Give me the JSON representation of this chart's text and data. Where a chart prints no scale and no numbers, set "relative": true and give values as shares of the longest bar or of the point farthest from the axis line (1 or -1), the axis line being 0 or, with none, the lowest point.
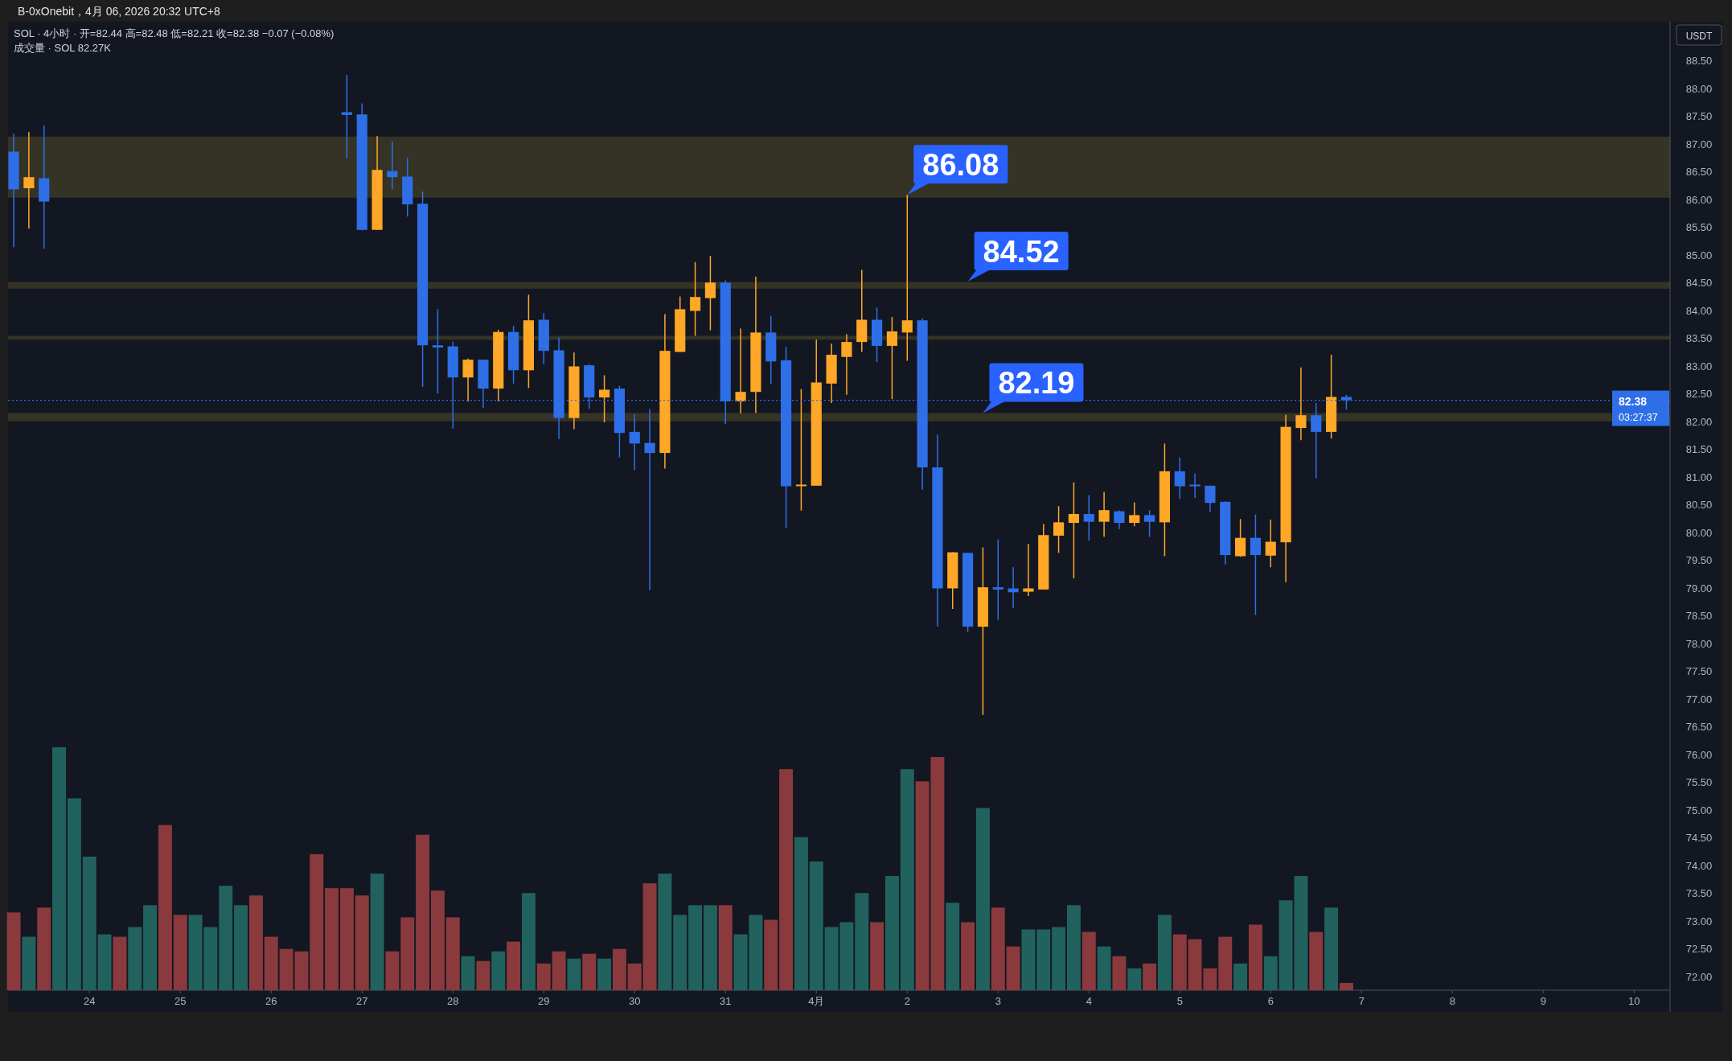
{
  "chart_data": [
    {
      "type": "candlestick",
      "title": "B-0xOnebit，4月 06, 2026 20:32 UTC+8",
      "subtitle": "SOL · 4小时 · 开=82.44 高=82.48 低=82.21 收=82.38 −0.07 (−0.08%)",
      "ylabel": "USDT",
      "x": [
        "2026-03-23T04:00",
        "2026-03-23T08:00",
        "2026-03-23T12:00",
        "2026-03-26T20:00",
        "2026-03-27T00:00",
        "2026-03-27T04:00",
        "2026-03-27T08:00",
        "2026-03-27T12:00",
        "2026-03-27T16:00",
        "2026-03-27T20:00",
        "2026-03-28T00:00",
        "2026-03-28T04:00",
        "2026-03-28T08:00",
        "2026-03-28T12:00",
        "2026-03-28T16:00",
        "2026-03-28T20:00",
        "2026-03-29T00:00",
        "2026-03-29T04:00",
        "2026-03-29T08:00",
        "2026-03-29T12:00",
        "2026-03-29T16:00",
        "2026-03-29T20:00",
        "2026-03-30T00:00",
        "2026-03-30T04:00",
        "2026-03-30T08:00",
        "2026-03-30T12:00",
        "2026-03-30T16:00",
        "2026-03-30T20:00",
        "2026-03-31T00:00",
        "2026-03-31T04:00",
        "2026-03-31T08:00",
        "2026-03-31T12:00",
        "2026-03-31T16:00",
        "2026-03-31T20:00",
        "2026-04-01T00:00",
        "2026-04-01T04:00",
        "2026-04-01T08:00",
        "2026-04-01T12:00",
        "2026-04-01T16:00",
        "2026-04-01T20:00",
        "2026-04-02T00:00",
        "2026-04-02T04:00",
        "2026-04-02T08:00",
        "2026-04-02T12:00",
        "2026-04-02T16:00",
        "2026-04-02T20:00",
        "2026-04-03T00:00",
        "2026-04-03T04:00",
        "2026-04-03T08:00",
        "2026-04-03T12:00",
        "2026-04-03T16:00",
        "2026-04-03T20:00",
        "2026-04-04T00:00",
        "2026-04-04T04:00",
        "2026-04-04T08:00",
        "2026-04-04T12:00",
        "2026-04-04T16:00",
        "2026-04-04T20:00",
        "2026-04-05T00:00",
        "2026-04-05T04:00",
        "2026-04-05T08:00",
        "2026-04-05T12:00",
        "2026-04-05T16:00",
        "2026-04-05T20:00",
        "2026-04-06T00:00",
        "2026-04-06T04:00",
        "2026-04-06T08:00",
        "2026-04-06T12:00",
        "2026-04-06T16:00",
        "2026-04-06T20:00"
      ],
      "ohlc": [
        [
          86.86,
          87.18,
          85.14,
          86.18
        ],
        [
          86.2,
          87.21,
          85.47,
          86.4
        ],
        [
          86.38,
          87.33,
          85.11,
          85.96
        ],
        [
          87.57,
          88.24,
          86.74,
          87.52
        ],
        [
          87.53,
          87.73,
          85.44,
          85.45
        ],
        [
          85.45,
          87.14,
          85.45,
          86.53
        ],
        [
          86.51,
          87.04,
          86.18,
          86.4
        ],
        [
          86.41,
          86.75,
          85.69,
          85.91
        ],
        [
          85.92,
          86.14,
          82.62,
          83.37
        ],
        [
          83.37,
          84.02,
          82.5,
          83.33
        ],
        [
          83.35,
          83.44,
          81.87,
          82.79
        ],
        [
          82.79,
          83.13,
          82.36,
          83.11
        ],
        [
          83.11,
          83.11,
          82.24,
          82.59
        ],
        [
          82.59,
          83.65,
          82.36,
          83.61
        ],
        [
          83.61,
          83.72,
          82.68,
          82.92
        ],
        [
          82.92,
          84.28,
          82.6,
          83.82
        ],
        [
          83.83,
          83.95,
          83.03,
          83.27
        ],
        [
          83.28,
          83.51,
          81.68,
          82.06
        ],
        [
          82.06,
          83.24,
          81.86,
          82.99
        ],
        [
          83.01,
          83.03,
          82.23,
          82.43
        ],
        [
          82.43,
          82.83,
          81.98,
          82.57
        ],
        [
          82.59,
          82.64,
          81.35,
          81.79
        ],
        [
          81.81,
          82.13,
          81.12,
          81.6
        ],
        [
          81.61,
          82.22,
          78.96,
          81.43
        ],
        [
          81.43,
          83.93,
          81.15,
          83.27
        ],
        [
          83.25,
          84.25,
          83.25,
          84.02
        ],
        [
          83.99,
          84.87,
          83.54,
          84.24
        ],
        [
          84.22,
          84.98,
          83.64,
          84.5
        ],
        [
          84.5,
          84.54,
          81.95,
          82.36
        ],
        [
          82.36,
          83.67,
          82.14,
          82.53
        ],
        [
          82.53,
          84.61,
          82.15,
          83.6
        ],
        [
          83.6,
          83.9,
          82.67,
          83.08
        ],
        [
          83.1,
          83.34,
          80.08,
          80.83
        ],
        [
          80.84,
          82.58,
          80.39,
          80.86
        ],
        [
          80.84,
          83.47,
          80.84,
          82.7
        ],
        [
          82.68,
          83.4,
          82.33,
          83.2
        ],
        [
          83.16,
          83.57,
          82.48,
          83.43
        ],
        [
          83.43,
          84.73,
          83.25,
          83.83
        ],
        [
          83.83,
          84.05,
          83.07,
          83.36
        ],
        [
          83.36,
          83.88,
          82.4,
          83.62
        ],
        [
          83.6,
          86.08,
          83.09,
          83.82
        ],
        [
          83.82,
          83.86,
          80.77,
          81.17
        ],
        [
          81.17,
          81.76,
          78.3,
          78.99
        ],
        [
          78.99,
          79.64,
          78.62,
          79.64
        ],
        [
          79.63,
          79.63,
          78.2,
          78.3
        ],
        [
          78.3,
          79.73,
          76.71,
          79.01
        ],
        [
          79.01,
          79.87,
          78.42,
          78.97
        ],
        [
          78.99,
          79.37,
          78.63,
          78.92
        ],
        [
          78.93,
          79.79,
          78.85,
          78.99
        ],
        [
          78.97,
          80.15,
          78.97,
          79.95
        ],
        [
          79.94,
          80.47,
          79.63,
          80.18
        ],
        [
          80.17,
          80.9,
          79.17,
          80.33
        ],
        [
          80.33,
          80.67,
          79.85,
          80.19
        ],
        [
          80.19,
          80.73,
          79.92,
          80.4
        ],
        [
          80.38,
          80.4,
          80.06,
          80.17
        ],
        [
          80.17,
          80.54,
          80.11,
          80.31
        ],
        [
          80.31,
          80.4,
          79.92,
          80.19
        ],
        [
          80.18,
          81.6,
          79.57,
          81.1
        ],
        [
          81.1,
          81.35,
          80.6,
          80.83
        ],
        [
          80.86,
          81.06,
          80.62,
          80.83
        ],
        [
          80.84,
          80.84,
          80.37,
          80.53
        ],
        [
          80.55,
          80.56,
          79.42,
          79.59
        ],
        [
          79.57,
          80.24,
          79.56,
          79.9
        ],
        [
          79.9,
          80.32,
          78.51,
          79.59
        ],
        [
          79.58,
          80.23,
          79.37,
          79.83
        ],
        [
          79.82,
          82.12,
          79.1,
          81.9
        ],
        [
          81.88,
          82.97,
          81.66,
          82.11
        ],
        [
          82.11,
          82.33,
          80.97,
          81.81
        ],
        [
          81.81,
          83.2,
          81.69,
          82.44
        ],
        [
          82.44,
          82.48,
          82.21,
          82.38
        ]
      ],
      "colors": [
        "#2e6fe8",
        "#ffa726",
        "#2e6fe8",
        "#2e6fe8",
        "#2e6fe8",
        "#ffa726",
        "#2e6fe8",
        "#2e6fe8",
        "#2e6fe8",
        "#2e6fe8",
        "#2e6fe8",
        "#ffa726",
        "#2e6fe8",
        "#ffa726",
        "#2e6fe8",
        "#ffa726",
        "#2e6fe8",
        "#2e6fe8",
        "#ffa726",
        "#2e6fe8",
        "#ffa726",
        "#2e6fe8",
        "#2e6fe8",
        "#2e6fe8",
        "#ffa726",
        "#ffa726",
        "#ffa726",
        "#ffa726",
        "#2e6fe8",
        "#ffa726",
        "#ffa726",
        "#2e6fe8",
        "#2e6fe8",
        "#ffa726",
        "#ffa726",
        "#ffa726",
        "#ffa726",
        "#ffa726",
        "#2e6fe8",
        "#ffa726",
        "#ffa726",
        "#2e6fe8",
        "#2e6fe8",
        "#ffa726",
        "#2e6fe8",
        "#ffa726",
        "#2e6fe8",
        "#2e6fe8",
        "#ffa726",
        "#ffa726",
        "#ffa726",
        "#ffa726",
        "#2e6fe8",
        "#ffa726",
        "#2e6fe8",
        "#ffa726",
        "#2e6fe8",
        "#ffa726",
        "#2e6fe8",
        "#2e6fe8",
        "#2e6fe8",
        "#2e6fe8",
        "#ffa726",
        "#2e6fe8",
        "#ffa726",
        "#ffa726",
        "#ffa726",
        "#2e6fe8",
        "#ffa726",
        "#2e6fe8"
      ],
      "xlim": [
        "2026-03-23T02:30",
        "2026-04-10T09:30"
      ],
      "xticks": [
        {
          "value": "2026-03-24",
          "label": "24"
        },
        {
          "value": "2026-03-25",
          "label": "25"
        },
        {
          "value": "2026-03-26",
          "label": "26"
        },
        {
          "value": "2026-03-27",
          "label": "27"
        },
        {
          "value": "2026-03-28",
          "label": "28"
        },
        {
          "value": "2026-03-29",
          "label": "29"
        },
        {
          "value": "2026-03-30",
          "label": "30"
        },
        {
          "value": "2026-03-31",
          "label": "31"
        },
        {
          "value": "2026-04-01",
          "label": "4月"
        },
        {
          "value": "2026-04-02",
          "label": "2"
        },
        {
          "value": "2026-04-03",
          "label": "3"
        },
        {
          "value": "2026-04-04",
          "label": "4"
        },
        {
          "value": "2026-04-05",
          "label": "5"
        },
        {
          "value": "2026-04-06",
          "label": "6"
        },
        {
          "value": "2026-04-07",
          "label": "7"
        },
        {
          "value": "2026-04-08",
          "label": "8"
        },
        {
          "value": "2026-04-09",
          "label": "9"
        },
        {
          "value": "2026-04-10",
          "label": "10"
        }
      ],
      "ylim": [
        71.75,
        89.2
      ],
      "yticks": [
        {
          "value": 72,
          "label": "72.00"
        },
        {
          "value": 72.5,
          "label": "72.50"
        },
        {
          "value": 73,
          "label": "73.00"
        },
        {
          "value": 73.5,
          "label": "73.50"
        },
        {
          "value": 74,
          "label": "74.00"
        },
        {
          "value": 74.5,
          "label": "74.50"
        },
        {
          "value": 75,
          "label": "75.00"
        },
        {
          "value": 75.5,
          "label": "75.50"
        },
        {
          "value": 76,
          "label": "76.00"
        },
        {
          "value": 76.5,
          "label": "76.50"
        },
        {
          "value": 77,
          "label": "77.00"
        },
        {
          "value": 77.5,
          "label": "77.50"
        },
        {
          "value": 78,
          "label": "78.00"
        },
        {
          "value": 78.5,
          "label": "78.50"
        },
        {
          "value": 79,
          "label": "79.00"
        },
        {
          "value": 79.5,
          "label": "79.50"
        },
        {
          "value": 80,
          "label": "80.00"
        },
        {
          "value": 80.5,
          "label": "80.50"
        },
        {
          "value": 81,
          "label": "81.00"
        },
        {
          "value": 81.5,
          "label": "81.50"
        },
        {
          "value": 82,
          "label": "82.00"
        },
        {
          "value": 82.5,
          "label": "82.50"
        },
        {
          "value": 83,
          "label": "83.00"
        },
        {
          "value": 83.5,
          "label": "83.50"
        },
        {
          "value": 84,
          "label": "84.00"
        },
        {
          "value": 84.5,
          "label": "84.50"
        },
        {
          "value": 85,
          "label": "85.00"
        },
        {
          "value": 85.5,
          "label": "85.50"
        },
        {
          "value": 86,
          "label": "86.00"
        },
        {
          "value": 86.5,
          "label": "86.50"
        },
        {
          "value": 87,
          "label": "87.00"
        },
        {
          "value": 87.5,
          "label": "87.50"
        },
        {
          "value": 88,
          "label": "88.00"
        },
        {
          "value": 88.5,
          "label": "88.50"
        }
      ],
      "bands": [
        {
          "axis": "y",
          "from": 86.03,
          "to": 87.13,
          "color": "#73672c"
        },
        {
          "axis": "y",
          "from": 84.39,
          "to": 84.51,
          "color": "#73672c"
        },
        {
          "axis": "y",
          "from": 82.0,
          "to": 82.15,
          "color": "#73672c"
        },
        {
          "axis": "y",
          "from": 83.47,
          "to": 83.54,
          "color": "#73672c"
        }
      ],
      "ref_lines": [
        {
          "axis": "y",
          "value": 82.38,
          "label": "82.38",
          "color": "#2e6fe8",
          "line_style": "dotted"
        }
      ],
      "annotations": [
        {
          "text": "86.08",
          "x": "2026-04-02T00:00",
          "y": 86.08
        },
        {
          "text": "84.52",
          "x": "2026-04-02T16:00",
          "y": 84.52
        },
        {
          "text": "82.19",
          "x": "2026-04-02T20:00",
          "y": 82.15
        },
        "03:27:37"
      ]
    },
    {
      "type": "bar",
      "title": "成交量 · SOL 82.27K",
      "relative": true,
      "xlim": [
        "2026-03-23T02:30",
        "2026-04-10T09:30"
      ],
      "x": [
        "2026-03-23T04:00",
        "2026-03-23T08:00",
        "2026-03-23T12:00",
        "2026-03-23T16:00",
        "2026-03-23T20:00",
        "2026-03-24T00:00",
        "2026-03-24T04:00",
        "2026-03-24T08:00",
        "2026-03-24T12:00",
        "2026-03-24T16:00",
        "2026-03-24T20:00",
        "2026-03-25T00:00",
        "2026-03-25T04:00",
        "2026-03-25T08:00",
        "2026-03-25T12:00",
        "2026-03-25T16:00",
        "2026-03-25T20:00",
        "2026-03-26T00:00",
        "2026-03-26T04:00",
        "2026-03-26T08:00",
        "2026-03-26T12:00",
        "2026-03-26T16:00",
        "2026-03-26T20:00",
        "2026-03-27T00:00",
        "2026-03-27T04:00",
        "2026-03-27T08:00",
        "2026-03-27T12:00",
        "2026-03-27T16:00",
        "2026-03-27T20:00",
        "2026-03-28T00:00",
        "2026-03-28T04:00",
        "2026-03-28T08:00",
        "2026-03-28T12:00",
        "2026-03-28T16:00",
        "2026-03-28T20:00",
        "2026-03-29T00:00",
        "2026-03-29T04:00",
        "2026-03-29T08:00",
        "2026-03-29T12:00",
        "2026-03-29T16:00",
        "2026-03-29T20:00",
        "2026-03-30T00:00",
        "2026-03-30T04:00",
        "2026-03-30T08:00",
        "2026-03-30T12:00",
        "2026-03-30T16:00",
        "2026-03-30T20:00",
        "2026-03-31T00:00",
        "2026-03-31T04:00",
        "2026-03-31T08:00",
        "2026-03-31T12:00",
        "2026-03-31T16:00",
        "2026-03-31T20:00",
        "2026-04-01T00:00",
        "2026-04-01T04:00",
        "2026-04-01T08:00",
        "2026-04-01T12:00",
        "2026-04-01T16:00",
        "2026-04-01T20:00",
        "2026-04-02T00:00",
        "2026-04-02T04:00",
        "2026-04-02T08:00",
        "2026-04-02T12:00",
        "2026-04-02T16:00",
        "2026-04-02T20:00",
        "2026-04-03T00:00",
        "2026-04-03T04:00",
        "2026-04-03T08:00",
        "2026-04-03T12:00",
        "2026-04-03T16:00",
        "2026-04-03T20:00",
        "2026-04-04T00:00",
        "2026-04-04T04:00",
        "2026-04-04T08:00",
        "2026-04-04T12:00",
        "2026-04-04T16:00",
        "2026-04-04T20:00",
        "2026-04-05T00:00",
        "2026-04-05T04:00",
        "2026-04-05T08:00",
        "2026-04-05T12:00",
        "2026-04-05T16:00",
        "2026-04-05T20:00",
        "2026-04-06T00:00",
        "2026-04-06T04:00",
        "2026-04-06T08:00",
        "2026-04-06T12:00",
        "2026-04-06T16:00",
        "2026-04-06T20:00"
      ],
      "values": [
        0.32,
        0.22,
        0.34,
        1,
        0.79,
        0.55,
        0.23,
        0.22,
        0.26,
        0.35,
        0.68,
        0.31,
        0.31,
        0.26,
        0.43,
        0.35,
        0.39,
        0.22,
        0.17,
        0.16,
        0.56,
        0.42,
        0.42,
        0.39,
        0.48,
        0.16,
        0.3,
        0.64,
        0.41,
        0.3,
        0.14,
        0.12,
        0.16,
        0.2,
        0.4,
        0.11,
        0.16,
        0.13,
        0.15,
        0.13,
        0.17,
        0.11,
        0.44,
        0.48,
        0.31,
        0.35,
        0.35,
        0.35,
        0.23,
        0.31,
        0.29,
        0.91,
        0.63,
        0.53,
        0.26,
        0.28,
        0.4,
        0.28,
        0.47,
        0.91,
        0.86,
        0.96,
        0.36,
        0.28,
        0.75,
        0.34,
        0.18,
        0.25,
        0.25,
        0.26,
        0.35,
        0.24,
        0.18,
        0.14,
        0.09,
        0.11,
        0.31,
        0.23,
        0.21,
        0.09,
        0.22,
        0.11,
        0.27,
        0.14,
        0.37,
        0.47,
        0.24,
        0.34,
        0.03
      ],
      "colors": [
        "#8a3a3d",
        "#22625e",
        "#8a3a3d",
        "#22625e",
        "#22625e",
        "#22625e",
        "#22625e",
        "#8a3a3d",
        "#22625e",
        "#22625e",
        "#8a3a3d",
        "#8a3a3d",
        "#22625e",
        "#22625e",
        "#22625e",
        "#22625e",
        "#8a3a3d",
        "#8a3a3d",
        "#8a3a3d",
        "#8a3a3d",
        "#8a3a3d",
        "#8a3a3d",
        "#8a3a3d",
        "#8a3a3d",
        "#22625e",
        "#8a3a3d",
        "#8a3a3d",
        "#8a3a3d",
        "#8a3a3d",
        "#8a3a3d",
        "#22625e",
        "#8a3a3d",
        "#22625e",
        "#8a3a3d",
        "#22625e",
        "#8a3a3d",
        "#8a3a3d",
        "#22625e",
        "#8a3a3d",
        "#22625e",
        "#8a3a3d",
        "#8a3a3d",
        "#8a3a3d",
        "#22625e",
        "#22625e",
        "#22625e",
        "#22625e",
        "#8a3a3d",
        "#22625e",
        "#22625e",
        "#8a3a3d",
        "#8a3a3d",
        "#22625e",
        "#22625e",
        "#22625e",
        "#22625e",
        "#22625e",
        "#8a3a3d",
        "#22625e",
        "#22625e",
        "#8a3a3d",
        "#8a3a3d",
        "#22625e",
        "#8a3a3d",
        "#22625e",
        "#8a3a3d",
        "#8a3a3d",
        "#22625e",
        "#22625e",
        "#22625e",
        "#22625e",
        "#8a3a3d",
        "#22625e",
        "#8a3a3d",
        "#22625e",
        "#8a3a3d",
        "#22625e",
        "#8a3a3d",
        "#8a3a3d",
        "#8a3a3d",
        "#8a3a3d",
        "#22625e",
        "#8a3a3d",
        "#22625e",
        "#22625e",
        "#22625e",
        "#8a3a3d",
        "#22625e",
        "#8a3a3d"
      ]
    }
  ]
}
